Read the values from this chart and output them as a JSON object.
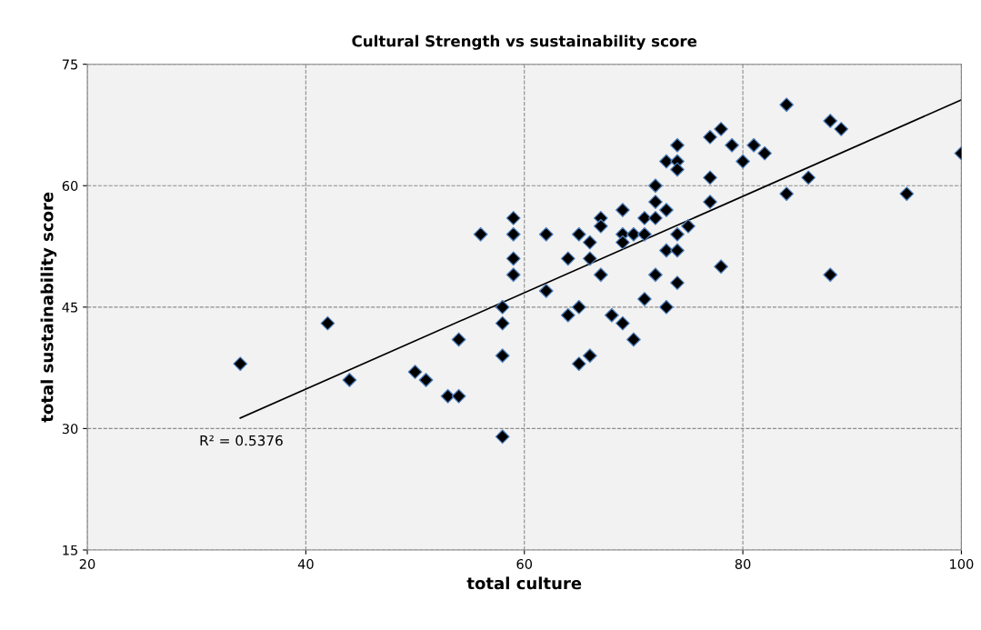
{
  "chart_data": {
    "type": "scatter",
    "title": "Cultural Strength vs sustainability score",
    "xlabel": "total culture",
    "ylabel": "total sustainability score",
    "xlim": [
      20,
      100
    ],
    "xticks": [
      20,
      40,
      60,
      80,
      100
    ],
    "ylim": [
      15,
      75
    ],
    "yticks": [
      15,
      30,
      45,
      60,
      75
    ],
    "grid": true,
    "marker": "diamond",
    "annotations": [
      "R² = 0.5376"
    ],
    "series": [
      {
        "color": "#000000",
        "x": [
          34,
          42,
          44,
          50,
          51,
          53,
          54,
          54,
          56,
          58,
          58,
          58,
          58,
          59,
          59,
          59,
          59,
          62,
          62,
          64,
          64,
          65,
          65,
          65,
          66,
          66,
          66,
          67,
          67,
          67,
          68,
          69,
          69,
          69,
          69,
          70,
          70,
          71,
          71,
          71,
          72,
          72,
          72,
          72,
          73,
          73,
          73,
          73,
          74,
          74,
          74,
          74,
          74,
          74,
          75,
          77,
          77,
          77,
          78,
          78,
          79,
          80,
          81,
          82,
          84,
          84,
          86,
          88,
          88,
          89,
          95,
          100
        ],
        "values": [
          38,
          43,
          36,
          37,
          36,
          34,
          34,
          41,
          54,
          45,
          43,
          39,
          29,
          56,
          54,
          51,
          49,
          54,
          47,
          51,
          44,
          54,
          45,
          38,
          53,
          51,
          39,
          56,
          55,
          49,
          44,
          57,
          54,
          53,
          43,
          54,
          41,
          56,
          54,
          46,
          60,
          58,
          56,
          49,
          63,
          57,
          52,
          45,
          65,
          63,
          62,
          54,
          52,
          48,
          55,
          66,
          61,
          58,
          67,
          50,
          65,
          63,
          65,
          64,
          70,
          59,
          61,
          68,
          49,
          67,
          59,
          64
        ]
      },
      {
        "type": "line",
        "color": "#000000",
        "marker": "none",
        "line_style": "solid",
        "x": [
          34,
          100
        ],
        "values": [
          31.3,
          70.6
        ]
      }
    ]
  }
}
